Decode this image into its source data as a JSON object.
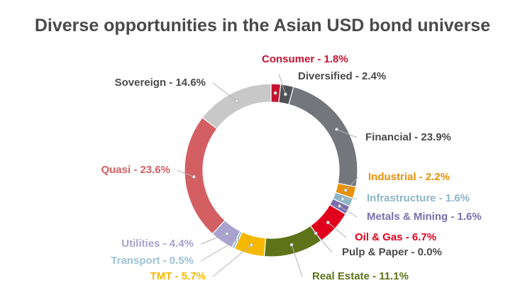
{
  "chart_data": {
    "type": "pie",
    "title": "Diverse opportunities in the Asian USD bond universe",
    "donut": true,
    "slices": [
      {
        "label": "Consumer - 1.8%",
        "value": 1.8,
        "color": "#c4122f"
      },
      {
        "label": "Diversified - 2.4%",
        "value": 2.4,
        "color": "#4f5459"
      },
      {
        "label": "Financial - 23.9%",
        "value": 23.9,
        "color": "#73777b"
      },
      {
        "label": "Industrial - 2.2%",
        "value": 2.2,
        "color": "#e8910c"
      },
      {
        "label": "Infrastructure - 1.6%",
        "value": 1.6,
        "color": "#8db5c8"
      },
      {
        "label": "Metals & Mining - 1.6%",
        "value": 1.6,
        "color": "#7b6fb0"
      },
      {
        "label": "Oil & Gas - 6.7%",
        "value": 6.7,
        "color": "#e0001b"
      },
      {
        "label": "Pulp & Paper - 0.0%",
        "value": 0.0,
        "color": "#3d3d3d"
      },
      {
        "label": "Real Estate - 11.1%",
        "value": 11.1,
        "color": "#5d7318"
      },
      {
        "label": "TMT - 5.7%",
        "value": 5.7,
        "color": "#f5b800"
      },
      {
        "label": "Transport - 0.5%",
        "value": 0.5,
        "color": "#9ec3d6"
      },
      {
        "label": "Utilities - 4.4%",
        "value": 4.4,
        "color": "#a9a2cf"
      },
      {
        "label": "Quasi - 23.6%",
        "value": 23.6,
        "color": "#d35f63"
      },
      {
        "label": "Sovereign - 14.6%",
        "value": 14.6,
        "color": "#c8c8c8"
      }
    ]
  }
}
